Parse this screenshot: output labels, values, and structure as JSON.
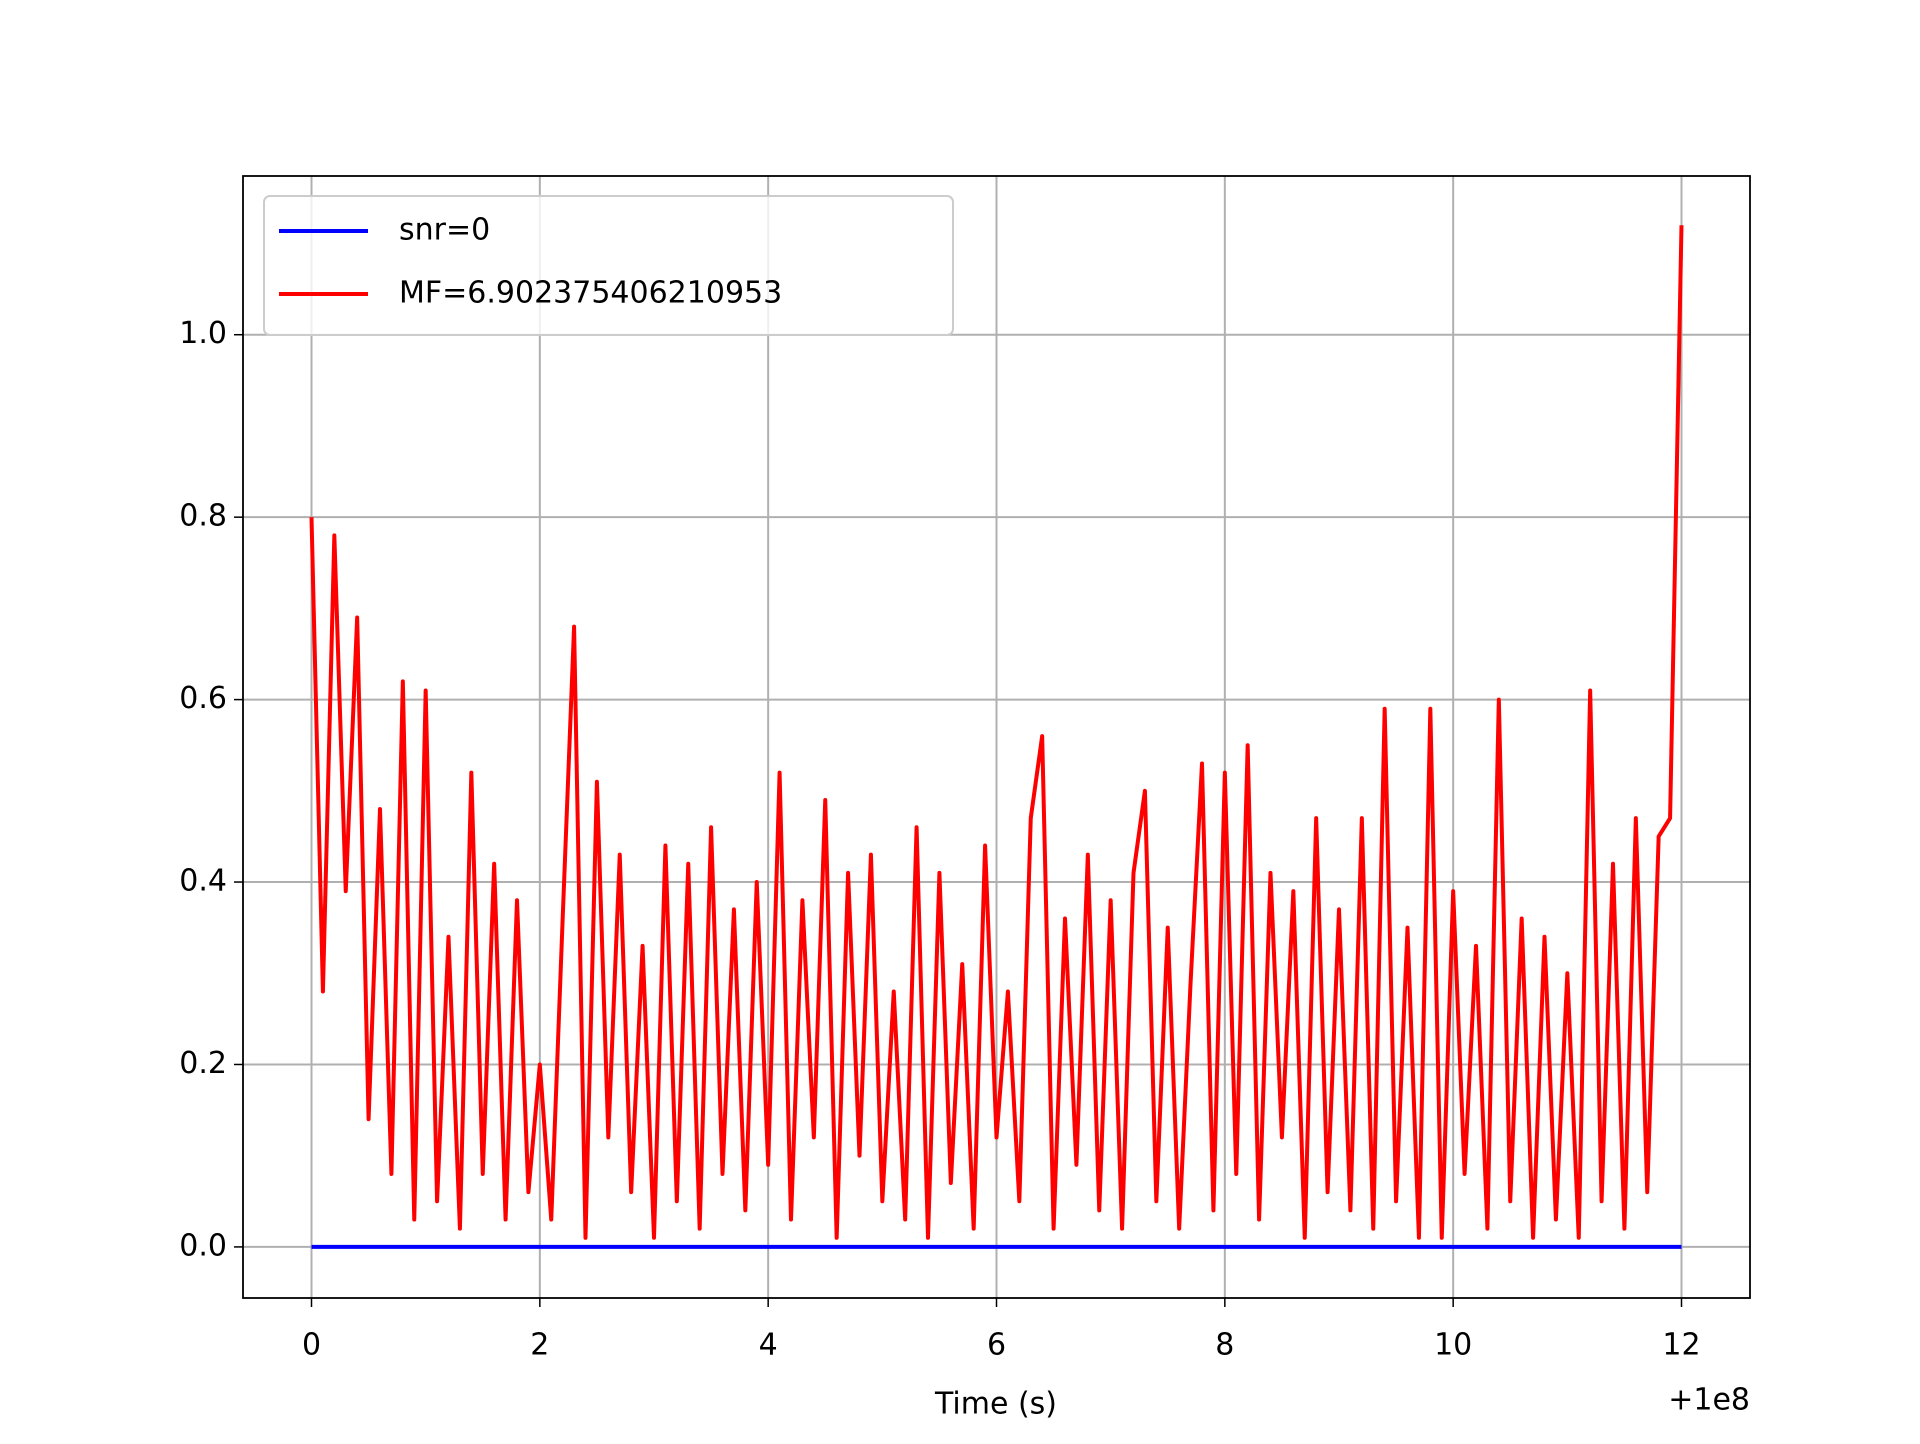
{
  "chart_data": {
    "type": "line",
    "x_label": "Time (s)",
    "x_offset_label": "+1e8",
    "x": [
      0,
      0.1,
      0.2,
      0.3,
      0.4,
      0.5,
      0.6,
      0.7,
      0.8,
      0.9,
      1,
      1.1,
      1.2,
      1.3,
      1.4,
      1.5,
      1.6,
      1.7,
      1.8,
      1.9,
      2,
      2.1,
      2.2,
      2.3,
      2.4,
      2.5,
      2.6,
      2.7,
      2.8,
      2.9,
      3,
      3.1,
      3.2,
      3.3,
      3.4,
      3.5,
      3.6,
      3.7,
      3.8,
      3.9,
      4,
      4.1,
      4.2,
      4.3,
      4.4,
      4.5,
      4.6,
      4.7,
      4.8,
      4.9,
      5,
      5.1,
      5.2,
      5.3,
      5.4,
      5.5,
      5.6,
      5.7,
      5.8,
      5.9,
      6,
      6.1,
      6.2,
      6.3,
      6.4,
      6.5,
      6.6,
      6.7,
      6.8,
      6.9,
      7,
      7.1,
      7.2,
      7.3,
      7.4,
      7.5,
      7.6,
      7.7,
      7.8,
      7.9,
      8,
      8.1,
      8.2,
      8.3,
      8.4,
      8.5,
      8.6,
      8.7,
      8.8,
      8.9,
      9,
      9.1,
      9.2,
      9.3,
      9.4,
      9.5,
      9.6,
      9.7,
      9.8,
      9.9,
      10,
      10.1,
      10.2,
      10.3,
      10.4,
      10.5,
      10.6,
      10.7,
      10.8,
      10.9,
      11,
      11.1,
      11.2,
      11.3,
      11.4,
      11.5,
      11.6,
      11.7,
      11.8,
      11.9,
      12
    ],
    "series": [
      {
        "name": "snr=0",
        "color": "#0000ff",
        "x": [
          0,
          12
        ],
        "values": [
          0,
          0
        ]
      },
      {
        "name": "MF=6.902375406210953",
        "color": "#ff0000",
        "values": [
          0.8,
          0.28,
          0.78,
          0.39,
          0.69,
          0.14,
          0.48,
          0.08,
          0.62,
          0.03,
          0.61,
          0.05,
          0.34,
          0.02,
          0.52,
          0.08,
          0.42,
          0.03,
          0.38,
          0.06,
          0.2,
          0.03,
          0.36,
          0.68,
          0.01,
          0.51,
          0.12,
          0.43,
          0.06,
          0.33,
          0.01,
          0.44,
          0.05,
          0.42,
          0.02,
          0.46,
          0.08,
          0.37,
          0.04,
          0.4,
          0.09,
          0.52,
          0.03,
          0.38,
          0.12,
          0.49,
          0.01,
          0.41,
          0.1,
          0.43,
          0.05,
          0.28,
          0.03,
          0.46,
          0.01,
          0.41,
          0.07,
          0.31,
          0.02,
          0.44,
          0.12,
          0.28,
          0.05,
          0.47,
          0.56,
          0.02,
          0.36,
          0.09,
          0.43,
          0.04,
          0.38,
          0.02,
          0.41,
          0.5,
          0.05,
          0.35,
          0.02,
          0.29,
          0.53,
          0.04,
          0.52,
          0.08,
          0.55,
          0.03,
          0.41,
          0.12,
          0.39,
          0.01,
          0.47,
          0.06,
          0.37,
          0.04,
          0.47,
          0.02,
          0.59,
          0.05,
          0.35,
          0.01,
          0.59,
          0.01,
          0.39,
          0.08,
          0.33,
          0.02,
          0.6,
          0.05,
          0.36,
          0.01,
          0.34,
          0.03,
          0.3,
          0.01,
          0.61,
          0.05,
          0.42,
          0.02,
          0.47,
          0.06,
          0.45,
          0.47,
          1.12
        ]
      }
    ],
    "xlim": [
      -0.6,
      12.6
    ],
    "ylim": [
      -0.056,
      1.174
    ],
    "xticks": [
      0,
      2,
      4,
      6,
      8,
      10,
      12
    ],
    "yticks": [
      {
        "value": 0,
        "label": "0.0"
      },
      0.2,
      0.4,
      0.6,
      0.8,
      {
        "value": 1,
        "label": "1.0"
      }
    ],
    "grid": true,
    "legend": "upper left"
  }
}
